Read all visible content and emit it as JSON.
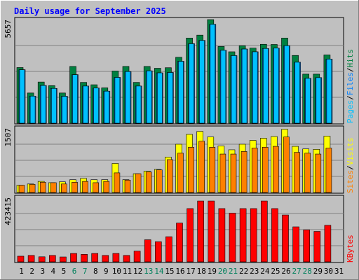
{
  "chart_data": {
    "type": "bar",
    "title": "Daily usage for September 2025",
    "categories": [
      "1",
      "2",
      "3",
      "4",
      "5",
      "6",
      "7",
      "8",
      "9",
      "10",
      "11",
      "12",
      "13",
      "14",
      "15",
      "16",
      "17",
      "18",
      "19",
      "20",
      "21",
      "22",
      "23",
      "24",
      "25",
      "26",
      "27",
      "28",
      "29",
      "30",
      "31"
    ],
    "weekend_days": [
      "6",
      "7",
      "13",
      "14",
      "20",
      "21",
      "27",
      "28"
    ],
    "panels": [
      {
        "id": "hits_files_pages",
        "max_label": "5657",
        "ylim": [
          0,
          5657
        ],
        "series_labels": [
          "Pages",
          "Files",
          "Hits"
        ],
        "series": [
          {
            "name": "Hits",
            "values": [
              3040,
              1650,
              2250,
              2050,
              1650,
              3100,
              2230,
              2100,
              1930,
              2850,
              3100,
              2230,
              3100,
              3000,
              3030,
              3600,
              4650,
              4810,
              5657,
              4190,
              3900,
              4230,
              4100,
              4310,
              4300,
              4650,
              3700,
              2680,
              2680,
              3730
            ]
          },
          {
            "name": "Files",
            "values": [
              2920,
              1480,
              2060,
              1900,
              1470,
              2650,
              2030,
              1920,
              1750,
              2500,
              2820,
              2030,
              2860,
              2750,
              2770,
              3380,
              4340,
              4520,
              5400,
              3980,
              3690,
              4050,
              3900,
              4080,
              4100,
              4230,
              3330,
              2450,
              2490,
              3500
            ]
          },
          {
            "name": "Pages",
            "values": [
              2920,
              1480,
              2060,
              1900,
              1470,
              2650,
              2030,
              1920,
              1750,
              2500,
              2820,
              2030,
              2860,
              2750,
              2770,
              3380,
              4340,
              4520,
              5400,
              3980,
              3690,
              4050,
              3900,
              4080,
              4100,
              4230,
              3330,
              2450,
              2490,
              3500
            ]
          }
        ]
      },
      {
        "id": "visits_sites",
        "max_label": "1507",
        "ylim": [
          0,
          1507
        ],
        "series_labels": [
          "Sites",
          "Visits"
        ],
        "series": [
          {
            "name": "Visits",
            "values": [
              170,
              200,
              260,
              230,
              250,
              300,
              330,
              300,
              300,
              680,
              300,
              440,
              500,
              540,
              830,
              1130,
              1360,
              1430,
              1300,
              1090,
              1000,
              1130,
              1220,
              1270,
              1310,
              1480,
              1080,
              1020,
              1010,
              1320
            ]
          },
          {
            "name": "Sites",
            "values": [
              170,
              190,
              240,
              230,
              200,
              240,
              260,
              230,
              260,
              460,
              290,
              440,
              480,
              530,
              770,
              920,
              1060,
              1200,
              1060,
              900,
              900,
              960,
              1040,
              1060,
              1080,
              1300,
              940,
              920,
              900,
              1040
            ]
          }
        ]
      },
      {
        "id": "kbytes",
        "max_label": "423415",
        "ylim": [
          0,
          423415
        ],
        "series_labels": [
          "KBytes"
        ],
        "series": [
          {
            "name": "KBytes",
            "values": [
              37000,
              42000,
              33000,
              42000,
              32000,
              55000,
              49000,
              55000,
              42000,
              55000,
              42000,
              70000,
              145000,
              132000,
              165000,
              255000,
              350000,
              400000,
              400000,
              350000,
              320000,
              350000,
              350000,
              400000,
              350000,
              308000,
              230000,
              210000,
              200000,
              240000
            ]
          }
        ]
      }
    ]
  },
  "colors": {
    "background": "#c0c0c0",
    "title": "#0000ff",
    "weekend_label": "#00805c",
    "weekday_label": "#000000",
    "hits": "#008040",
    "files": "#0080ff",
    "pages": "#00c0ff",
    "visits": "#ffff00",
    "sites": "#ff8000",
    "kbytes": "#ff0000"
  }
}
